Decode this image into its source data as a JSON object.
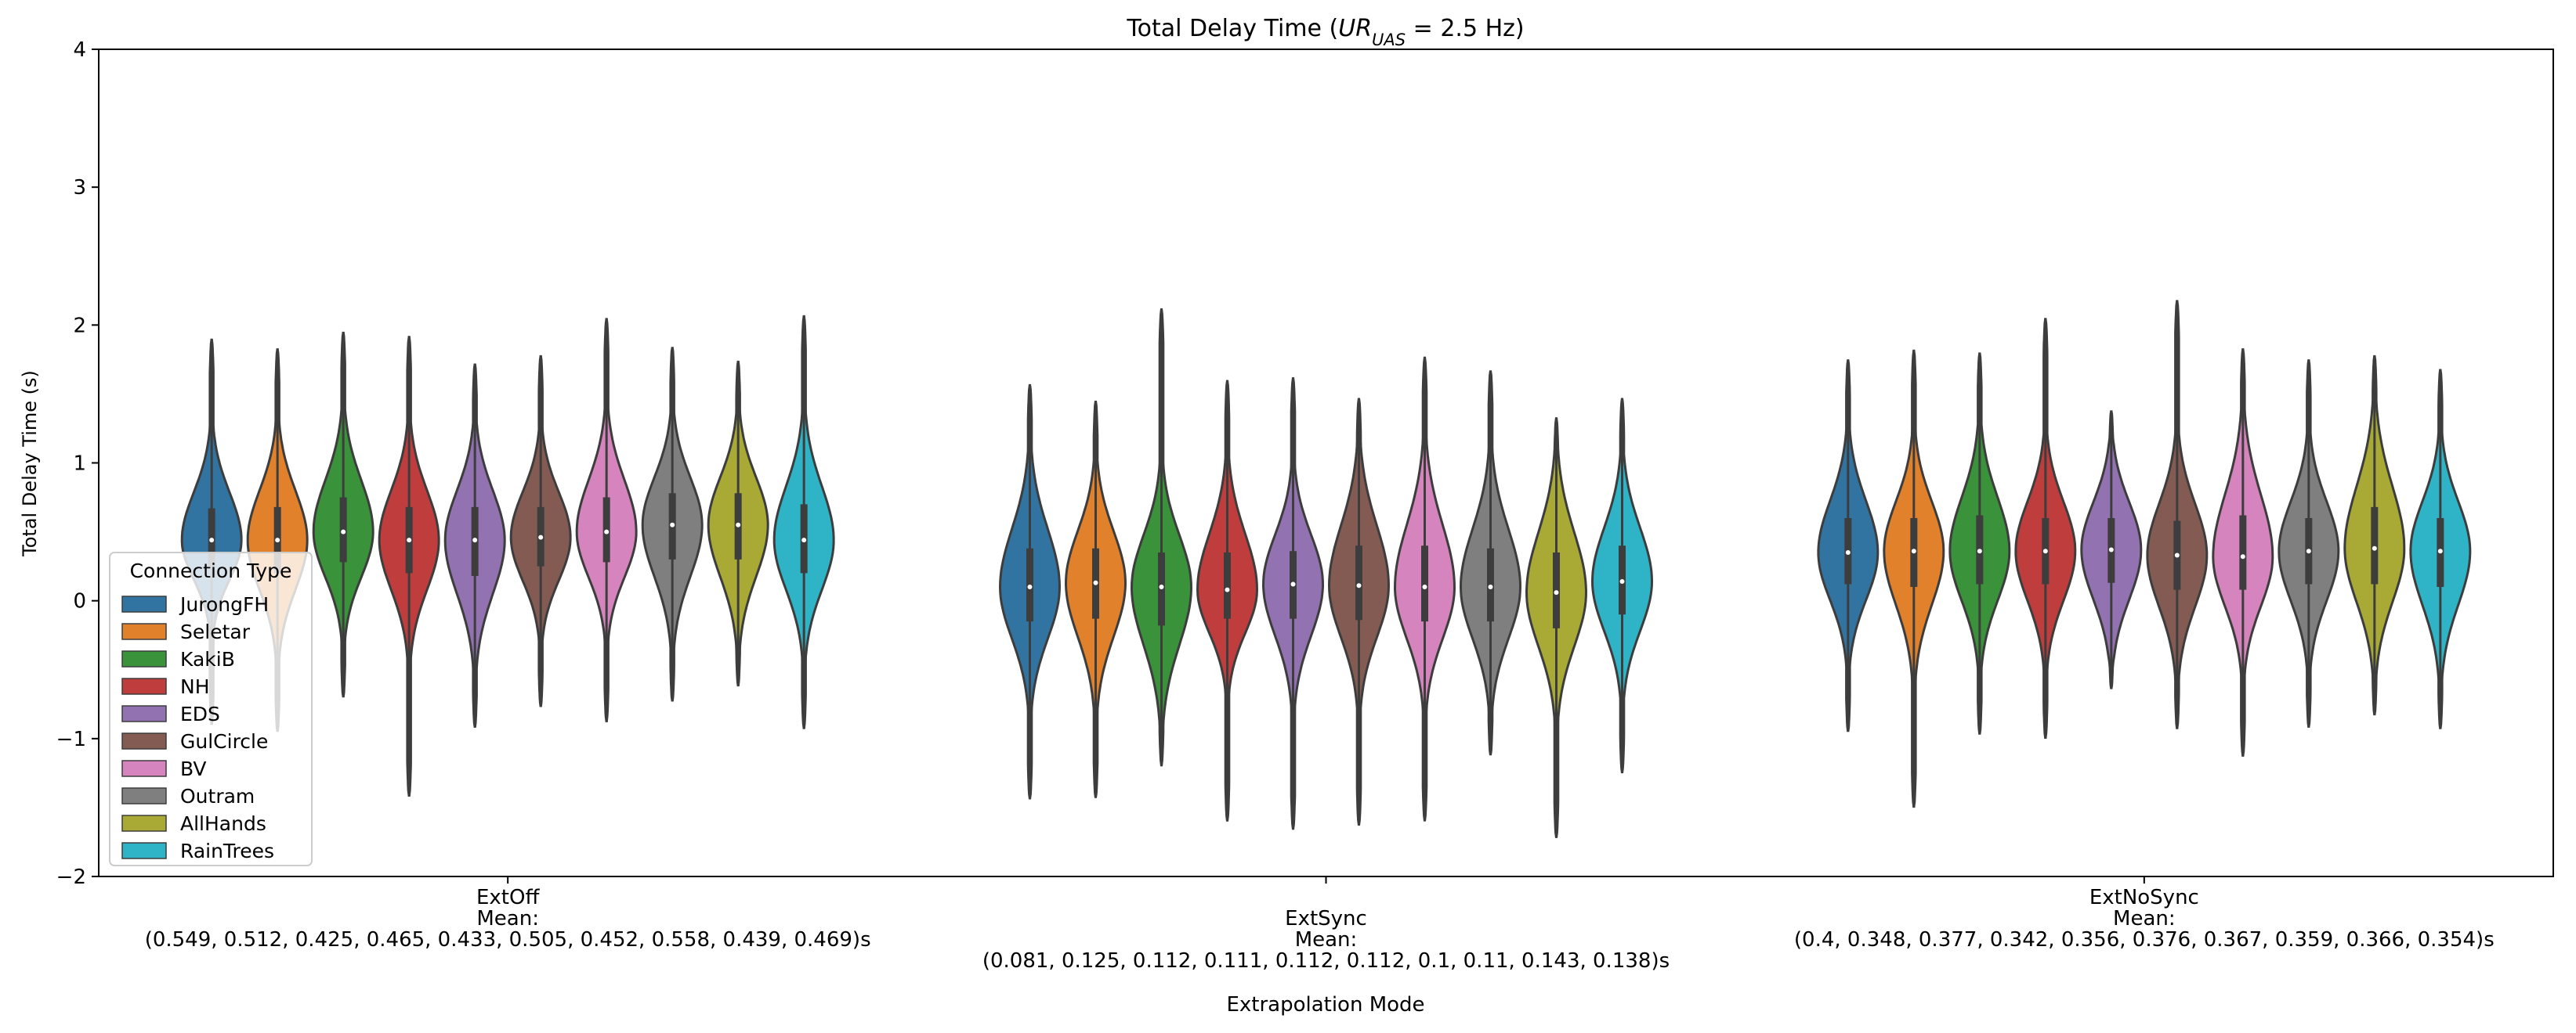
{
  "chart_data": {
    "type": "violin",
    "title_parts": {
      "before": "Total Delay Time (",
      "math": "UR",
      "subscript": "UAS",
      "after": " = 2.5 Hz)"
    },
    "x_label": "Extrapolation Mode",
    "y_label": "Total Delay Time (s)",
    "categories": [
      "ExtOff",
      "ExtSync",
      "ExtNoSync"
    ],
    "category_notes": [
      [
        "Mean:",
        "(0.549, 0.512, 0.425, 0.465, 0.433, 0.505, 0.452, 0.558, 0.439, 0.469)s"
      ],
      [
        "Mean:",
        "(0.081, 0.125, 0.112, 0.111, 0.112, 0.112, 0.1, 0.11, 0.143, 0.138)s"
      ],
      [
        "Mean:",
        "(0.4, 0.348, 0.377, 0.342, 0.356, 0.376, 0.367, 0.359, 0.366, 0.354)s"
      ]
    ],
    "ylim": [
      -2,
      4
    ],
    "yticks": [
      -2,
      -1,
      0,
      1,
      2,
      3,
      4
    ],
    "yticks_labels": [
      "−2",
      "−1",
      "0",
      "1",
      "2",
      "3",
      "4"
    ],
    "legend_title": "Connection Type",
    "legend_corner": "lower left",
    "series": [
      {
        "name": "JurongFH",
        "color": "#3274a1",
        "median": [
          0.44,
          0.1,
          0.35
        ],
        "q1": [
          0.25,
          -0.15,
          0.12
        ],
        "q3": [
          0.67,
          0.38,
          0.6
        ],
        "min": [
          -0.9,
          -1.44,
          -0.95
        ],
        "max": [
          1.9,
          1.57,
          1.75
        ]
      },
      {
        "name": "Seletar",
        "color": "#e1812c",
        "median": [
          0.44,
          0.13,
          0.36
        ],
        "q1": [
          0.2,
          -0.13,
          0.1
        ],
        "q3": [
          0.68,
          0.38,
          0.6
        ],
        "min": [
          -0.95,
          -1.43,
          -1.5
        ],
        "max": [
          1.83,
          1.45,
          1.82
        ]
      },
      {
        "name": "KakiB",
        "color": "#3a923a",
        "median": [
          0.5,
          0.1,
          0.36
        ],
        "q1": [
          0.28,
          -0.18,
          0.12
        ],
        "q3": [
          0.75,
          0.35,
          0.62
        ],
        "min": [
          -0.7,
          -1.2,
          -0.97
        ],
        "max": [
          1.95,
          2.12,
          1.8
        ]
      },
      {
        "name": "NH",
        "color": "#c03d3e",
        "median": [
          0.44,
          0.08,
          0.36
        ],
        "q1": [
          0.2,
          -0.13,
          0.12
        ],
        "q3": [
          0.68,
          0.35,
          0.6
        ],
        "min": [
          -1.42,
          -1.6,
          -1.0
        ],
        "max": [
          1.92,
          1.6,
          2.05
        ]
      },
      {
        "name": "EDS",
        "color": "#9372b2",
        "median": [
          0.44,
          0.12,
          0.37
        ],
        "q1": [
          0.18,
          -0.13,
          0.13
        ],
        "q3": [
          0.68,
          0.36,
          0.6
        ],
        "min": [
          -0.92,
          -1.66,
          -0.64
        ],
        "max": [
          1.72,
          1.62,
          1.38
        ]
      },
      {
        "name": "GulCircle",
        "color": "#845b53",
        "median": [
          0.46,
          0.11,
          0.33
        ],
        "q1": [
          0.25,
          -0.14,
          0.08
        ],
        "q3": [
          0.68,
          0.4,
          0.58
        ],
        "min": [
          -0.77,
          -1.63,
          -0.93
        ],
        "max": [
          1.78,
          1.47,
          2.18
        ]
      },
      {
        "name": "BV",
        "color": "#d684bd",
        "median": [
          0.5,
          0.1,
          0.32
        ],
        "q1": [
          0.28,
          -0.15,
          0.08
        ],
        "q3": [
          0.75,
          0.4,
          0.62
        ],
        "min": [
          -0.88,
          -1.6,
          -1.13
        ],
        "max": [
          2.05,
          1.77,
          1.83
        ]
      },
      {
        "name": "Outram",
        "color": "#7f7f7f",
        "median": [
          0.55,
          0.1,
          0.36
        ],
        "q1": [
          0.3,
          -0.15,
          0.12
        ],
        "q3": [
          0.78,
          0.38,
          0.6
        ],
        "min": [
          -0.73,
          -1.12,
          -0.92
        ],
        "max": [
          1.84,
          1.67,
          1.75
        ]
      },
      {
        "name": "AllHands",
        "color": "#a9aa35",
        "median": [
          0.55,
          0.06,
          0.38
        ],
        "q1": [
          0.3,
          -0.2,
          0.12
        ],
        "q3": [
          0.78,
          0.35,
          0.68
        ],
        "min": [
          -0.62,
          -1.72,
          -0.83
        ],
        "max": [
          1.74,
          1.33,
          1.78
        ]
      },
      {
        "name": "RainTrees",
        "color": "#2eb4c6",
        "median": [
          0.44,
          0.14,
          0.36
        ],
        "q1": [
          0.2,
          -0.1,
          0.1
        ],
        "q3": [
          0.7,
          0.4,
          0.6
        ],
        "min": [
          -0.93,
          -1.25,
          -0.93
        ],
        "max": [
          2.07,
          1.47,
          1.68
        ]
      }
    ]
  }
}
